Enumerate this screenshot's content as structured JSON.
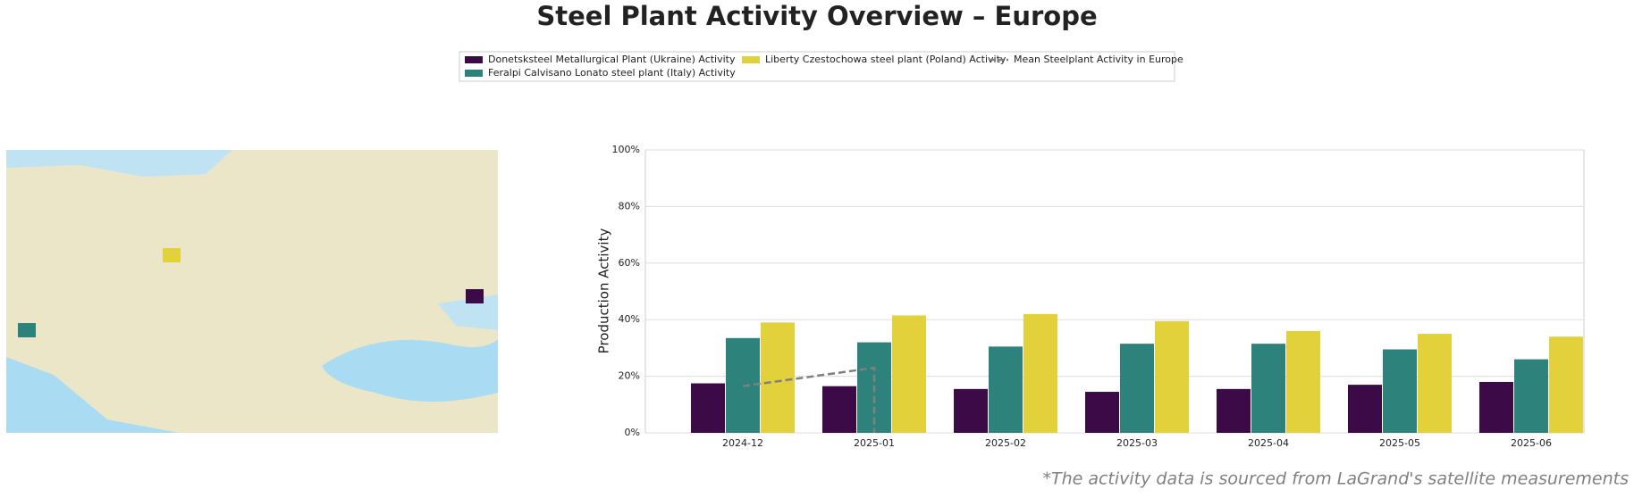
{
  "chart_data": {
    "type": "bar",
    "title": "Steel Plant Activity Overview – Europe",
    "y_label": "Production Activity",
    "footnote": "*The activity data is sourced from LaGrand's satellite measurements",
    "categories": [
      "2024-12",
      "2025-01",
      "2025-02",
      "2025-03",
      "2025-04",
      "2025-05",
      "2025-06"
    ],
    "series": [
      {
        "name": "Donetsksteel Metallurgical Plant (Ukraine) Activity",
        "color": "#3b0a47",
        "values": [
          17.5,
          16.5,
          15.5,
          14.5,
          15.5,
          17,
          18
        ]
      },
      {
        "name": "Feralpi Calvisano Lonato steel plant (Italy) Activity",
        "color": "#2e827c",
        "values": [
          33.5,
          32,
          30.5,
          31.5,
          31.5,
          29.5,
          26
        ]
      },
      {
        "name": "Liberty Czestochowa steel plant (Poland) Activity",
        "color": "#e2d13b",
        "values": [
          39,
          41.5,
          42,
          39.5,
          36,
          35,
          34
        ]
      },
      {
        "name": "Mean Steelplant Activity in Europe",
        "color": "#808080",
        "type": "line",
        "dashed": true,
        "x": [
          "2024-12",
          "2025-01",
          "2025-01"
        ],
        "values": [
          16.5,
          23,
          0
        ]
      }
    ],
    "ylim": [
      0,
      100
    ],
    "yticks": [
      {
        "value": 0,
        "label": "0%"
      },
      {
        "value": 20,
        "label": "20%"
      },
      {
        "value": 40,
        "label": "40%"
      },
      {
        "value": 60,
        "label": "60%"
      },
      {
        "value": 80,
        "label": "80%"
      },
      {
        "value": 100,
        "label": "100%"
      }
    ],
    "grid": true
  }
}
